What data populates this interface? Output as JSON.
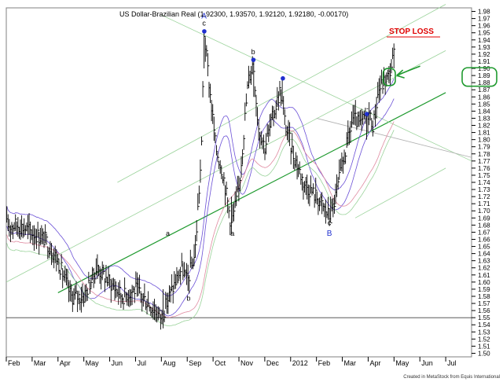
{
  "chart_data": {
    "type": "bar",
    "title": "US Dollar-Brazilian Real (1.92300, 1.93570, 1.92120, 1.92180, -0.00170)",
    "x_tick_labels": [
      "Feb",
      "Mar",
      "Apr",
      "May",
      "Jun",
      "Jul",
      "Aug",
      "Sep",
      "Oct",
      "Nov",
      "Dec",
      "2012",
      "Feb",
      "Mar",
      "Apr",
      "May",
      "Jun",
      "Jul"
    ],
    "y_ticks": [
      1.5,
      1.51,
      1.52,
      1.53,
      1.54,
      1.55,
      1.56,
      1.57,
      1.58,
      1.59,
      1.6,
      1.61,
      1.62,
      1.63,
      1.64,
      1.65,
      1.66,
      1.67,
      1.68,
      1.69,
      1.7,
      1.71,
      1.72,
      1.73,
      1.74,
      1.75,
      1.76,
      1.77,
      1.78,
      1.79,
      1.8,
      1.81,
      1.82,
      1.83,
      1.84,
      1.85,
      1.86,
      1.87,
      1.88,
      1.89,
      1.9,
      1.91,
      1.92,
      1.93,
      1.94,
      1.95,
      1.96,
      1.97,
      1.98
    ],
    "y_tick_labels": [
      "1.50",
      "1.51",
      "1.52",
      "1.53",
      "1.54",
      "1.55",
      "1.56",
      "1.57",
      "1.58",
      "1.59",
      "1.60",
      "1.61",
      "1.62",
      "1.63",
      "1.64",
      "1.65",
      "1.66",
      "1.67",
      "1.68",
      "1.69",
      "1.70",
      "1.71",
      "1.72",
      "1.73",
      "1.74",
      "1.75",
      "1.76",
      "1.77",
      "1.78",
      "1.79",
      "1.80",
      "1.81",
      "1.82",
      "1.83",
      "1.84",
      "1.85",
      "1.86",
      "1.87",
      "1.88",
      "1.89",
      "1.90",
      "1.91",
      "1.92",
      "1.93",
      "1.94",
      "1.95",
      "1.96",
      "1.97",
      "1.98"
    ],
    "ylim": [
      1.495,
      1.985
    ],
    "x_range_months": [
      0,
      18
    ],
    "grid": false,
    "series": [
      {
        "values_monthly_close": [
          [
            0.0,
            1.68
          ],
          [
            0.5,
            1.68
          ],
          [
            1.0,
            1.67
          ],
          [
            1.5,
            1.66
          ],
          [
            2.0,
            1.63
          ],
          [
            2.5,
            1.58
          ],
          [
            3.0,
            1.58
          ],
          [
            3.5,
            1.62
          ],
          [
            4.0,
            1.6
          ],
          [
            4.5,
            1.58
          ],
          [
            5.0,
            1.59
          ],
          [
            5.5,
            1.57
          ],
          [
            6.0,
            1.55
          ],
          [
            6.3,
            1.58
          ],
          [
            6.8,
            1.62
          ],
          [
            7.0,
            1.6
          ],
          [
            7.3,
            1.64
          ],
          [
            7.55,
            1.78
          ],
          [
            7.65,
            1.95
          ],
          [
            7.9,
            1.86
          ],
          [
            8.1,
            1.79
          ],
          [
            8.4,
            1.75
          ],
          [
            8.7,
            1.68
          ],
          [
            9.0,
            1.73
          ],
          [
            9.35,
            1.88
          ],
          [
            9.55,
            1.91
          ],
          [
            9.75,
            1.82
          ],
          [
            10.0,
            1.79
          ],
          [
            10.3,
            1.83
          ],
          [
            10.6,
            1.87
          ],
          [
            10.8,
            1.82
          ],
          [
            11.1,
            1.78
          ],
          [
            11.5,
            1.74
          ],
          [
            12.0,
            1.72
          ],
          [
            12.35,
            1.7
          ],
          [
            12.55,
            1.69
          ],
          [
            12.8,
            1.73
          ],
          [
            13.1,
            1.78
          ],
          [
            13.4,
            1.83
          ],
          [
            13.7,
            1.82
          ],
          [
            14.0,
            1.84
          ],
          [
            14.2,
            1.82
          ],
          [
            14.4,
            1.87
          ],
          [
            14.6,
            1.88
          ],
          [
            14.8,
            1.89
          ],
          [
            15.0,
            1.92
          ]
        ]
      }
    ],
    "annotations": [
      {
        "text": "A",
        "month": 7.65,
        "value": 1.97,
        "style": "blue"
      },
      {
        "text": "c",
        "month": 7.65,
        "value": 1.96,
        "style": "black"
      },
      {
        "text": "b",
        "month": 9.55,
        "value": 1.92,
        "style": "black"
      },
      {
        "text": "a",
        "month": 8.75,
        "value": 1.665,
        "style": "black"
      },
      {
        "text": "a",
        "month": 6.25,
        "value": 1.665,
        "style": "black"
      },
      {
        "text": "b",
        "month": 7.05,
        "value": 1.574,
        "style": "black"
      },
      {
        "text": "c",
        "month": 12.5,
        "value": 1.68,
        "style": "black"
      },
      {
        "text": "B",
        "month": 12.5,
        "value": 1.665,
        "style": "blue"
      }
    ],
    "stop_loss_label": "STOP LOSS",
    "stop_loss_level": 1.95,
    "support_level": 1.55,
    "credit": "Created in MetaStock from Equis International"
  }
}
